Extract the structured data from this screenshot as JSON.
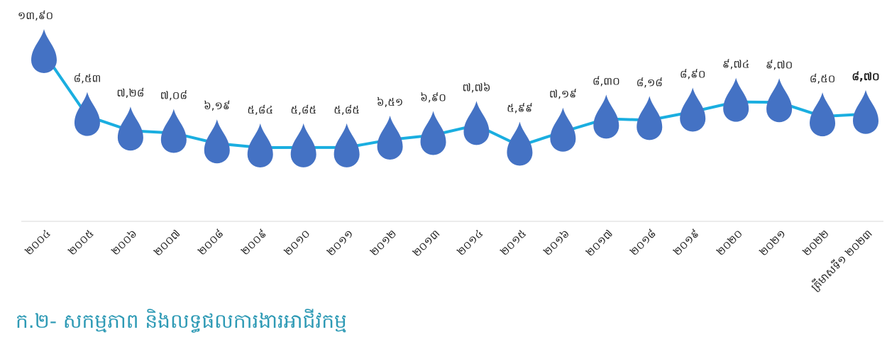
{
  "chart_data": {
    "type": "line",
    "title": "ក.២- សកម្មភាព និងលទ្ធផលការងារអាជីវកម្ម",
    "categories": [
      "២០០៤",
      "២០០៥",
      "២០០៦",
      "២០០៧",
      "២០០៨",
      "២០០៩",
      "២០១០",
      "២០១១",
      "២០១២",
      "២០១៣",
      "២០១៤",
      "២០១៥",
      "២០១៦",
      "២០១៧",
      "២០១៨",
      "២០១៩",
      "២០២០",
      "២០២១",
      "២០២២",
      "ត្រីមាសទី១ ២០២៣"
    ],
    "series": [
      {
        "color": "#1aaee0",
        "values": [
          13.9,
          8.53,
          7.28,
          7.08,
          6.19,
          5.84,
          5.85,
          5.85,
          6.51,
          6.9,
          7.76,
          5.99,
          7.19,
          8.3,
          8.18,
          8.9,
          9.74,
          9.7,
          8.5,
          8.7
        ],
        "value_labels": [
          "១៣,៩០",
          "៨,៥៣",
          "៧,២៨",
          "៧,០៨",
          "៦,១៩",
          "៥,៨៤",
          "៥,៨៥",
          "៥,៨៥",
          "៦,៥១",
          "៦,៩០",
          "៧,៧៦",
          "៥,៩៩",
          "៧,១៩",
          "៨,៣០",
          "៨,១៨",
          "៨,៩០",
          "៩,៧៤",
          "៩,៧០",
          "៨,៥០",
          "៨,៧០"
        ]
      }
    ],
    "marker_color": "#4472c4"
  }
}
